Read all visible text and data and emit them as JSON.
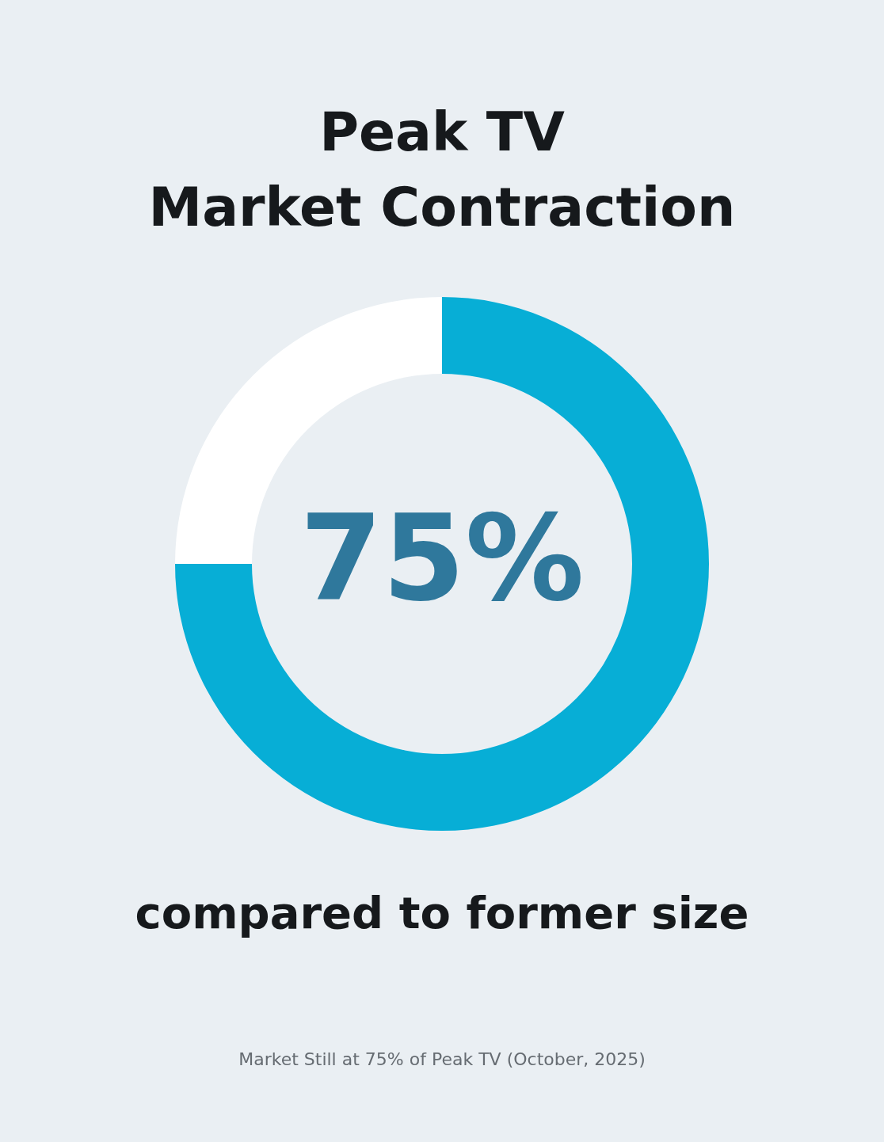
{
  "chart_data": {
    "type": "donut",
    "title": "Peak TV\nMarket Contraction",
    "subtitle": "compared to former size",
    "categories": [
      null,
      null
    ],
    "values": [
      75,
      25
    ],
    "colors": [
      "#07aed6",
      "#ffffff"
    ],
    "value_labels": [
      "75%",
      null
    ],
    "annotations": [
      "Market Still at 75% of Peak TV (October, 2025)"
    ]
  }
}
